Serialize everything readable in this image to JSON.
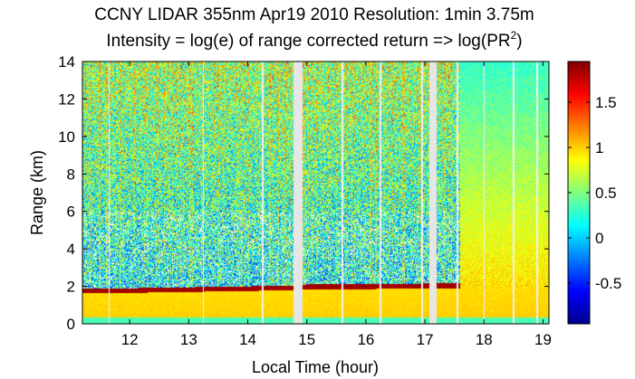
{
  "chart_data": {
    "type": "heatmap",
    "title": "CCNY LIDAR 355nm Apr19 2010 Resolution: 1min 3.75m",
    "subtitle_prefix": "Intensity = log(e) of range corrected return => log(PR",
    "subtitle_superscript": "2",
    "subtitle_suffix": ")",
    "xlabel": "Local Time (hour)",
    "ylabel": "Range (km)",
    "xlim": [
      11.2,
      19.1
    ],
    "ylim": [
      0,
      14
    ],
    "x_ticks": [
      12,
      13,
      14,
      15,
      16,
      17,
      18,
      19
    ],
    "y_ticks": [
      0,
      2,
      4,
      6,
      8,
      10,
      12,
      14
    ],
    "colorbar": {
      "range": [
        -0.95,
        1.95
      ],
      "ticks": [
        -0.5,
        0,
        0.5,
        1,
        1.5
      ],
      "colormap": "jet"
    },
    "features": {
      "boundary_layer_top_km": [
        {
          "x": 11.2,
          "y": 1.75
        },
        {
          "x": 12,
          "y": 1.75
        },
        {
          "x": 13,
          "y": 1.8
        },
        {
          "x": 14,
          "y": 1.85
        },
        {
          "x": 14.8,
          "y": 1.9
        },
        {
          "x": 15,
          "y": 1.95
        },
        {
          "x": 16,
          "y": 1.95
        },
        {
          "x": 17,
          "y": 2.0
        },
        {
          "x": 17.6,
          "y": 2.0
        }
      ],
      "data_gaps_hours": [
        [
          14.78,
          14.92
        ],
        [
          17.07,
          17.2
        ]
      ],
      "thin_gaps_hours": [
        11.65,
        13.25,
        14.25,
        15.6,
        16.25,
        16.95,
        17.55,
        18.0,
        18.5,
        18.9
      ]
    }
  }
}
